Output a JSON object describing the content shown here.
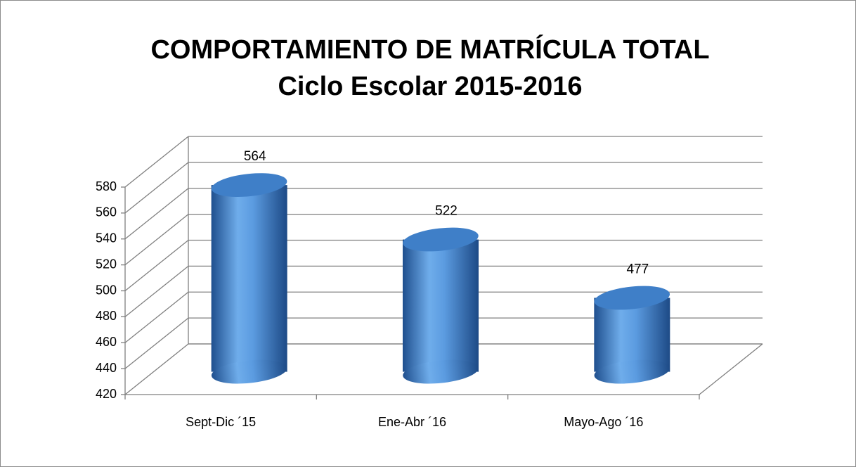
{
  "chart_data": {
    "type": "cylinder",
    "title": "COMPORTAMIENTO DE MATRÍCULA TOTAL",
    "subtitle": "Ciclo Escolar 2015-2016",
    "categories": [
      "Sept-Dic ´15",
      "Ene-Abr ´16",
      "Mayo-Ago ´16"
    ],
    "values": [
      564,
      522,
      477
    ],
    "color": "#3b7ac4",
    "ylim": [
      420,
      580
    ],
    "yticks": [
      420,
      440,
      460,
      480,
      500,
      520,
      540,
      560,
      580
    ],
    "grid": true
  }
}
